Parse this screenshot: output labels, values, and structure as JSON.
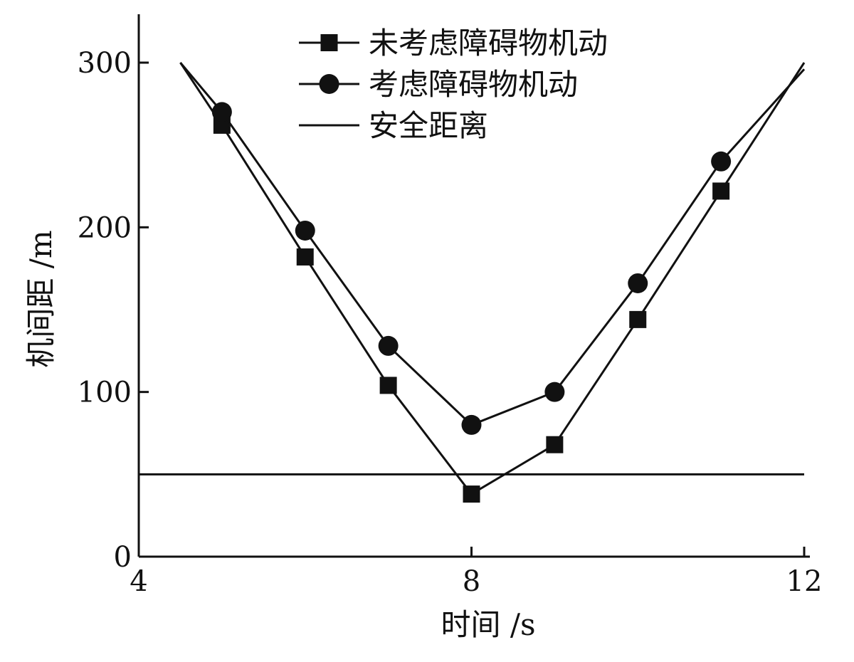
{
  "chart_data": {
    "type": "line",
    "title": "",
    "xlabel": "时间 /s",
    "ylabel": "机间距 /m",
    "xlim": [
      4,
      12
    ],
    "ylim": [
      0,
      320
    ],
    "x_ticks": [
      4,
      8,
      12
    ],
    "y_ticks": [
      0,
      100,
      200,
      300
    ],
    "grid": false,
    "legend_position": "top-center",
    "series": [
      {
        "name": "未考虑障碍物机动",
        "marker": "square",
        "color": "#111111",
        "line_x": [
          4.5,
          5,
          6,
          7,
          8,
          9,
          10,
          11,
          12
        ],
        "line_y": [
          300,
          262,
          182,
          104,
          38,
          68,
          144,
          222,
          300
        ],
        "marker_x": [
          5,
          6,
          7,
          8,
          9,
          10,
          11
        ],
        "marker_y": [
          262,
          182,
          104,
          38,
          68,
          144,
          222
        ]
      },
      {
        "name": "考虑障碍物机动",
        "marker": "circle",
        "color": "#111111",
        "line_x": [
          4.5,
          5,
          6,
          7,
          8,
          9,
          10,
          11,
          12
        ],
        "line_y": [
          300,
          270,
          198,
          128,
          80,
          100,
          166,
          240,
          296
        ],
        "marker_x": [
          5,
          6,
          7,
          8,
          9,
          10,
          11
        ],
        "marker_y": [
          270,
          198,
          128,
          80,
          100,
          166,
          240
        ]
      },
      {
        "name": "安全距离",
        "marker": "none",
        "color": "#111111",
        "line_x": [
          4,
          12
        ],
        "line_y": [
          50,
          50
        ]
      }
    ]
  }
}
